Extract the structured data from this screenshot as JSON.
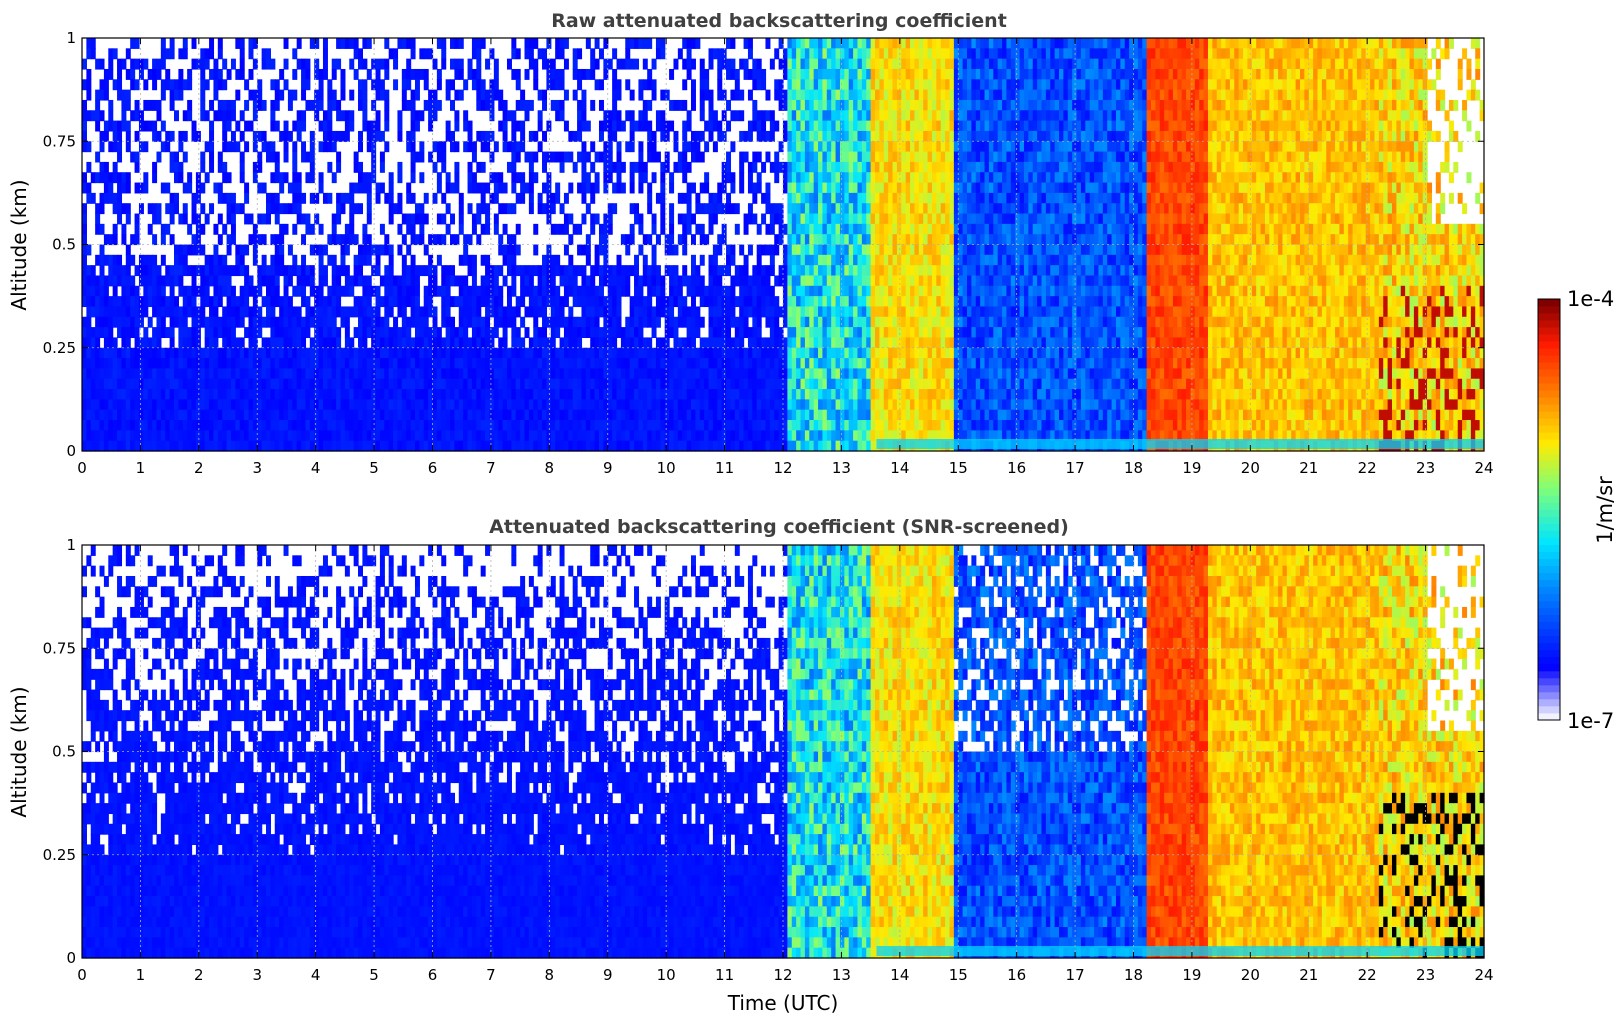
{
  "chart_data": [
    {
      "type": "heatmap",
      "title": "Raw attenuated backscattering coefficient",
      "xlabel": "",
      "ylabel": "Altitude (km)",
      "xlim": [
        0,
        24
      ],
      "ylim": [
        0,
        1
      ],
      "xticks": [
        "0",
        "1",
        "2",
        "3",
        "4",
        "5",
        "6",
        "7",
        "8",
        "9",
        "10",
        "11",
        "12",
        "13",
        "14",
        "15",
        "16",
        "17",
        "18",
        "19",
        "20",
        "21",
        "22",
        "23",
        "24"
      ],
      "yticks": [
        "0",
        "0.25",
        "0.5",
        "0.75",
        "1"
      ],
      "grid": true,
      "color_scale": "log",
      "segments": [
        {
          "from": 0.0,
          "to": 12.1,
          "regime": "noise-blue",
          "screened": false
        },
        {
          "from": 12.1,
          "to": 13.5,
          "regime": "blue-cyan-green bands"
        },
        {
          "from": 13.5,
          "to": 14.9,
          "regime": "yellow-orange bands"
        },
        {
          "from": 14.9,
          "to": 18.25,
          "regime": "blue with cyan streaks"
        },
        {
          "from": 18.25,
          "to": 19.3,
          "regime": "red-orange"
        },
        {
          "from": 19.3,
          "to": 22.2,
          "regime": "yellow-orange"
        },
        {
          "from": 22.2,
          "to": 24.0,
          "regime": "mixed yellow with dark red cores"
        }
      ]
    },
    {
      "type": "heatmap",
      "title": "Attenuated backscattering coefficient (SNR-screened)",
      "xlabel": "Time (UTC)",
      "ylabel": "Altitude (km)",
      "xlim": [
        0,
        24
      ],
      "ylim": [
        0,
        1
      ],
      "xticks": [
        "0",
        "1",
        "2",
        "3",
        "4",
        "5",
        "6",
        "7",
        "8",
        "9",
        "10",
        "11",
        "12",
        "13",
        "14",
        "15",
        "16",
        "17",
        "18",
        "19",
        "20",
        "21",
        "22",
        "23",
        "24"
      ],
      "yticks": [
        "0",
        "0.25",
        "0.5",
        "0.75",
        "1"
      ],
      "grid": true,
      "color_scale": "log",
      "segments": [
        {
          "from": 0.0,
          "to": 12.1,
          "regime": "solid blue with white screened patches aloft",
          "screened": true
        },
        {
          "from": 12.1,
          "to": 13.5,
          "regime": "blue-cyan-green bands"
        },
        {
          "from": 13.5,
          "to": 14.9,
          "regime": "yellow-orange bands"
        },
        {
          "from": 14.9,
          "to": 18.25,
          "regime": "blue with cyan streaks"
        },
        {
          "from": 18.25,
          "to": 19.3,
          "regime": "red-orange"
        },
        {
          "from": 19.3,
          "to": 22.2,
          "regime": "yellow-orange"
        },
        {
          "from": 22.2,
          "to": 24.0,
          "regime": "mixed yellow with black saturated cores"
        }
      ]
    }
  ],
  "colorbar": {
    "label": "1/m/sr",
    "max_label": "1e-4",
    "min_label": "1e-7",
    "colormap": "jet (log)",
    "colors": [
      "#f2f2ff",
      "#0000ff",
      "#0080ff",
      "#00e5ff",
      "#7dff7a",
      "#ffea00",
      "#ff8000",
      "#ff1a00",
      "#800000"
    ]
  }
}
